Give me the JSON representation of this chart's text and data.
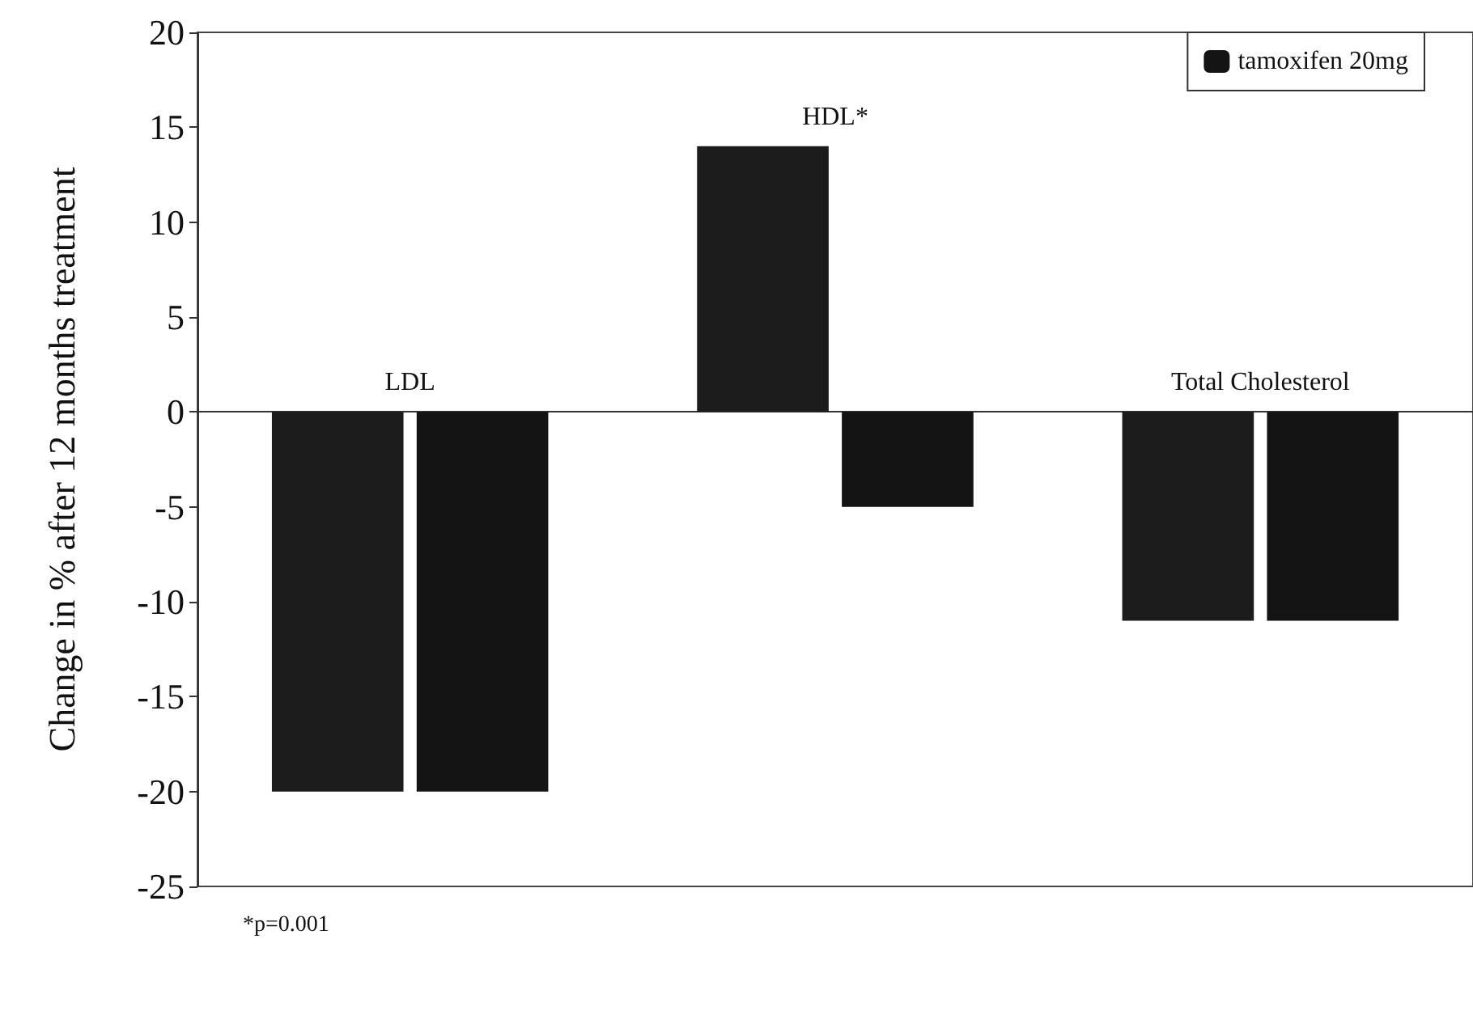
{
  "chart_data": {
    "type": "bar",
    "ylabel": "Change in % after 12 months treatment",
    "categories": [
      "LDL",
      "HDL*",
      "Total Cholesterol"
    ],
    "series": [
      {
        "color": "#1c1c1c",
        "values": [
          -20,
          14,
          -11
        ]
      },
      {
        "name": "tamoxifen 20mg",
        "color": "#141414",
        "values": [
          -20,
          -5,
          -11
        ]
      }
    ],
    "ylim": [
      -25,
      20
    ],
    "yticks": [
      -25,
      -20,
      -15,
      -10,
      -5,
      0,
      5,
      10,
      15,
      20
    ],
    "grid": false,
    "legend": "top right",
    "annotations": [
      "*p=0.001"
    ]
  }
}
